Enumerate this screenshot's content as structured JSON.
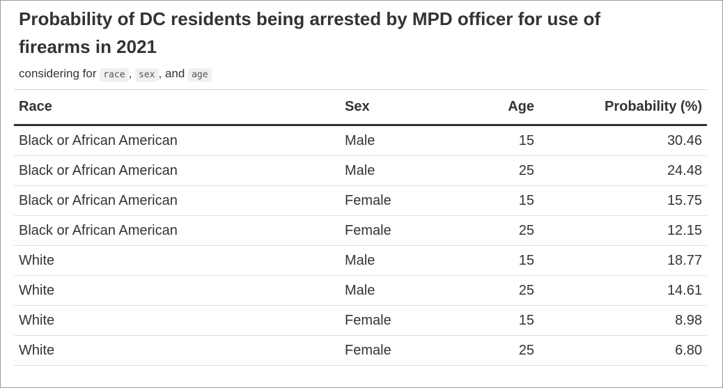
{
  "title": "Probability of DC residents being arrested by MPD officer for use of firearms in 2021",
  "subtitle": {
    "prefix": "considering for",
    "var1": "race",
    "sep1": ",",
    "var2": "sex",
    "sep2": ", and",
    "var3": "age"
  },
  "table": {
    "headers": {
      "race": "Race",
      "sex": "Sex",
      "age": "Age",
      "probability": "Probability (%)"
    },
    "rows": [
      {
        "race": "Black or African American",
        "sex": "Male",
        "age": "15",
        "probability": "30.46"
      },
      {
        "race": "Black or African American",
        "sex": "Male",
        "age": "25",
        "probability": "24.48"
      },
      {
        "race": "Black or African American",
        "sex": "Female",
        "age": "15",
        "probability": "15.75"
      },
      {
        "race": "Black or African American",
        "sex": "Female",
        "age": "25",
        "probability": "12.15"
      },
      {
        "race": "White",
        "sex": "Male",
        "age": "15",
        "probability": "18.77"
      },
      {
        "race": "White",
        "sex": "Male",
        "age": "25",
        "probability": "14.61"
      },
      {
        "race": "White",
        "sex": "Female",
        "age": "15",
        "probability": "8.98"
      },
      {
        "race": "White",
        "sex": "Female",
        "age": "25",
        "probability": "6.80"
      }
    ]
  }
}
